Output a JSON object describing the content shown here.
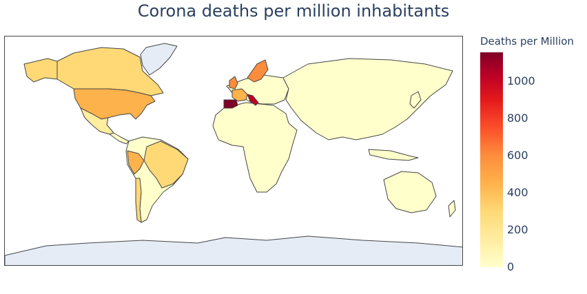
{
  "title": "Corona deaths per million inhabitants",
  "legend": {
    "title": "Deaths per Million",
    "ticks": [
      "1000",
      "800",
      "600",
      "400",
      "200",
      "0"
    ]
  },
  "colors": {
    "no_data": "#e5ecf6",
    "border": "#444444",
    "scale": [
      "#ffffcc",
      "#ffeda0",
      "#fed976",
      "#feb24c",
      "#fd8d3c",
      "#fc4e2a",
      "#e31a1c",
      "#bd0026",
      "#800026"
    ]
  },
  "map": {
    "projection": "equirectangular",
    "regions": [
      {
        "name": "Greenland",
        "fill": "#e5ecf6"
      },
      {
        "name": "Antarctica",
        "fill": "#e5ecf6"
      },
      {
        "name": "Canada",
        "fill": "#fed976"
      },
      {
        "name": "Alaska",
        "fill": "#fed976"
      },
      {
        "name": "United States",
        "fill": "#feb24c"
      },
      {
        "name": "Mexico",
        "fill": "#ffeda0"
      },
      {
        "name": "Central America",
        "fill": "#ffffcc"
      },
      {
        "name": "South America",
        "fill": "#ffffcc"
      },
      {
        "name": "Brazil",
        "fill": "#fed976"
      },
      {
        "name": "Peru",
        "fill": "#feb24c"
      },
      {
        "name": "Chile",
        "fill": "#fed976"
      },
      {
        "name": "Africa",
        "fill": "#ffffcc"
      },
      {
        "name": "Europe",
        "fill": "#ffffcc"
      },
      {
        "name": "United Kingdom",
        "fill": "#fd8d3c"
      },
      {
        "name": "France",
        "fill": "#feb24c"
      },
      {
        "name": "Spain",
        "fill": "#800026"
      },
      {
        "name": "Italy",
        "fill": "#bd0026"
      },
      {
        "name": "Belgium",
        "fill": "#800026"
      },
      {
        "name": "Sweden",
        "fill": "#fd8d3c"
      },
      {
        "name": "Asia",
        "fill": "#ffffcc"
      },
      {
        "name": "Australia",
        "fill": "#ffffcc"
      }
    ]
  }
}
